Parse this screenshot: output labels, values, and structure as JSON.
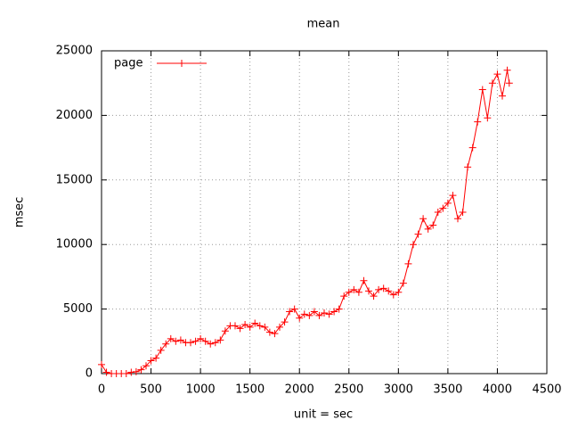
{
  "chart_data": {
    "type": "line",
    "title": "mean",
    "xlabel": "unit = sec",
    "ylabel": "msec",
    "x": [
      0,
      50,
      100,
      150,
      200,
      250,
      300,
      350,
      400,
      450,
      500,
      550,
      600,
      650,
      700,
      750,
      800,
      850,
      900,
      950,
      1000,
      1050,
      1100,
      1150,
      1200,
      1250,
      1300,
      1350,
      1400,
      1450,
      1500,
      1550,
      1600,
      1650,
      1700,
      1750,
      1800,
      1850,
      1900,
      1950,
      2000,
      2050,
      2100,
      2150,
      2200,
      2250,
      2300,
      2350,
      2400,
      2450,
      2500,
      2550,
      2600,
      2650,
      2700,
      2750,
      2800,
      2850,
      2900,
      2950,
      3000,
      3050,
      3100,
      3150,
      3200,
      3250,
      3300,
      3350,
      3400,
      3450,
      3500,
      3550,
      3600,
      3650,
      3700,
      3750,
      3800,
      3850,
      3900,
      3950,
      4000,
      4050,
      4100,
      4120
    ],
    "series": [
      {
        "name": "page",
        "color": "#ff0000",
        "values": [
          700,
          100,
          0,
          0,
          0,
          0,
          100,
          150,
          300,
          600,
          1000,
          1200,
          1800,
          2300,
          2700,
          2500,
          2600,
          2400,
          2400,
          2500,
          2700,
          2500,
          2300,
          2400,
          2600,
          3300,
          3700,
          3700,
          3500,
          3800,
          3600,
          3900,
          3700,
          3600,
          3200,
          3100,
          3600,
          4000,
          4800,
          5000,
          4300,
          4600,
          4500,
          4800,
          4500,
          4700,
          4600,
          4800,
          5000,
          6000,
          6300,
          6500,
          6300,
          7200,
          6400,
          6000,
          6500,
          6600,
          6400,
          6100,
          6300,
          7000,
          8500,
          10000,
          10800,
          12000,
          11200,
          11500,
          12500,
          12800,
          13200,
          13800,
          12000,
          12500,
          16000,
          17500,
          19500,
          22000,
          19800,
          22500,
          23200,
          21500,
          23500,
          22500
        ]
      }
    ],
    "xlim": [
      0,
      4500
    ],
    "xticks": [
      0,
      500,
      1000,
      1500,
      2000,
      2500,
      3000,
      3500,
      4000,
      4500
    ],
    "ylim": [
      0,
      25000
    ],
    "yticks": [
      0,
      5000,
      10000,
      15000,
      20000,
      25000
    ],
    "grid": true,
    "legend": "top-left"
  }
}
